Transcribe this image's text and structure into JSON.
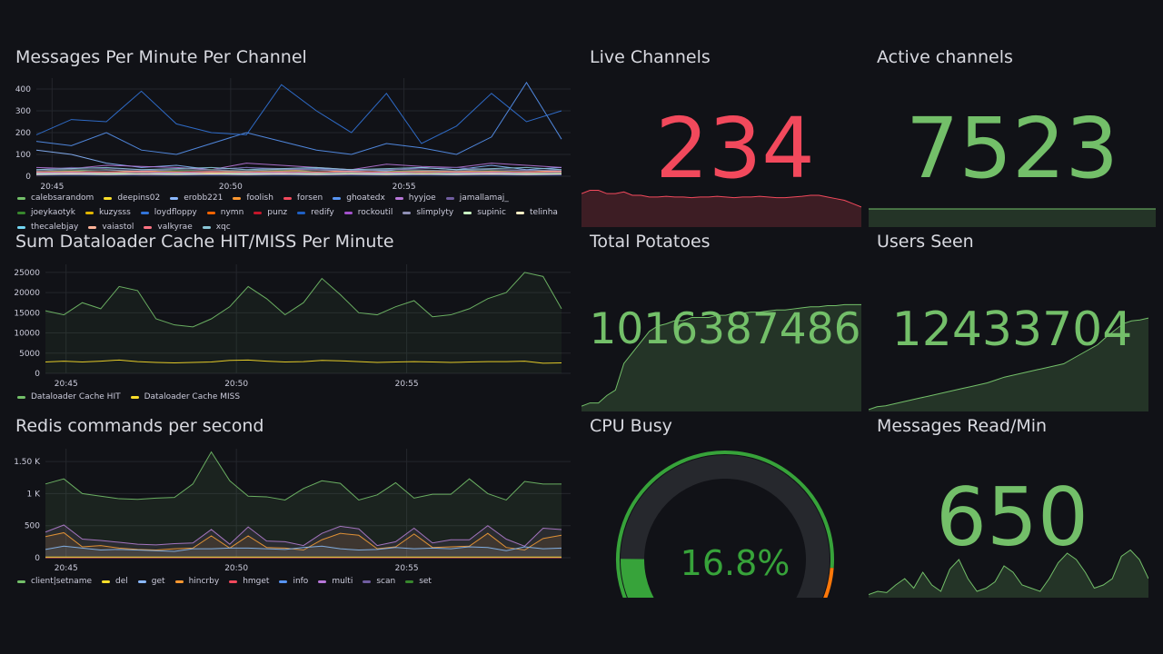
{
  "panels": {
    "messages": {
      "title": "Messages Per Minute Per Channel"
    },
    "dataloader": {
      "title": "Sum Dataloader Cache HIT/MISS Per Minute"
    },
    "redis": {
      "title": "Redis commands per second"
    },
    "live": {
      "title": "Live Channels",
      "value": "234",
      "color": "#f2495c"
    },
    "active": {
      "title": "Active channels",
      "value": "7523",
      "color": "#73bf69"
    },
    "potatoes": {
      "title": "Total Potatoes",
      "value": "1016387486",
      "color": "#73bf69"
    },
    "users": {
      "title": "Users Seen",
      "value": "12433704",
      "color": "#73bf69"
    },
    "cpu": {
      "title": "CPU Busy",
      "value": "16.8%",
      "percent": 16.8,
      "color": "#37a33a"
    },
    "msgread": {
      "title": "Messages Read/Min",
      "value": "650",
      "color": "#73bf69"
    }
  },
  "chart_data": [
    {
      "type": "line",
      "title": "Messages Per Minute Per Channel",
      "ylim": [
        0,
        450
      ],
      "yticks": [
        "0",
        "100",
        "200",
        "300",
        "400"
      ],
      "ytickvals": [
        0,
        100,
        200,
        300,
        400
      ],
      "xticks": [
        "20:45",
        "20:50",
        "20:55"
      ],
      "xtickpos": [
        0.03,
        0.37,
        0.7
      ],
      "series": [
        {
          "name": "calebsarandom",
          "color": "#73bf69",
          "values": [
            20,
            25,
            30,
            20,
            15,
            20,
            25,
            30,
            20,
            18,
            22,
            25,
            20,
            15,
            20,
            25
          ]
        },
        {
          "name": "deepins02",
          "color": "#fade2a",
          "values": [
            10,
            12,
            15,
            10,
            8,
            10,
            15,
            12,
            10,
            8,
            10,
            12,
            10,
            8,
            12,
            10
          ]
        },
        {
          "name": "erobb221",
          "color": "#8ab8ff",
          "values": [
            120,
            100,
            60,
            40,
            50,
            30,
            40,
            30,
            35,
            30,
            25,
            40,
            30,
            50,
            30,
            40
          ]
        },
        {
          "name": "foolish",
          "color": "#ff9830",
          "values": [
            15,
            20,
            18,
            25,
            20,
            15,
            20,
            25,
            30,
            20,
            18,
            20,
            25,
            22,
            20,
            25
          ]
        },
        {
          "name": "forsen",
          "color": "#f2495c",
          "values": [
            5,
            8,
            10,
            5,
            6,
            8,
            10,
            12,
            8,
            6,
            8,
            10,
            8,
            6,
            8,
            10
          ]
        },
        {
          "name": "ghoatedx",
          "color": "#5794f2",
          "values": [
            160,
            140,
            200,
            120,
            100,
            150,
            200,
            160,
            120,
            100,
            150,
            130,
            100,
            180,
            430,
            170
          ]
        },
        {
          "name": "hyyjoe",
          "color": "#b877d9",
          "values": [
            40,
            35,
            50,
            45,
            40,
            30,
            60,
            50,
            40,
            30,
            55,
            45,
            40,
            60,
            50,
            40
          ]
        },
        {
          "name": "jamallamaj_",
          "color": "#705da0",
          "values": [
            30,
            40,
            35,
            30,
            25,
            30,
            40,
            35,
            30,
            25,
            30,
            35,
            40,
            30,
            25,
            30
          ]
        },
        {
          "name": "joeykaotyk",
          "color": "#37872d",
          "values": [
            20,
            25,
            15,
            20,
            25,
            30,
            20,
            25,
            20,
            15,
            20,
            25,
            20,
            25,
            20,
            15
          ]
        },
        {
          "name": "kuzysss",
          "color": "#e0b400",
          "values": [
            10,
            15,
            12,
            10,
            8,
            12,
            15,
            10,
            12,
            8,
            10,
            12,
            10,
            8,
            12,
            10
          ]
        },
        {
          "name": "loydfloppy",
          "color": "#3274d9",
          "values": [
            190,
            260,
            250,
            390,
            240,
            200,
            190,
            420,
            300,
            200,
            380,
            150,
            230,
            380,
            250,
            300
          ]
        },
        {
          "name": "nymn",
          "color": "#fa6400",
          "values": [
            8,
            10,
            12,
            8,
            10,
            12,
            8,
            10,
            12,
            8,
            10,
            12,
            8,
            10,
            12,
            8
          ]
        },
        {
          "name": "punz",
          "color": "#c4162a",
          "values": [
            5,
            6,
            5,
            6,
            5,
            6,
            5,
            6,
            5,
            6,
            5,
            6,
            5,
            6,
            5,
            6
          ]
        },
        {
          "name": "redify",
          "color": "#1f60c4",
          "values": [
            5,
            5,
            5,
            5,
            5,
            5,
            5,
            5,
            5,
            5,
            5,
            5,
            5,
            5,
            5,
            5
          ]
        },
        {
          "name": "rockoutil",
          "color": "#a352cc",
          "values": [
            12,
            15,
            10,
            12,
            15,
            10,
            12,
            15,
            10,
            12,
            15,
            10,
            12,
            15,
            10,
            12
          ]
        },
        {
          "name": "slimplyty",
          "color": "#8f8fb5",
          "values": [
            25,
            30,
            28,
            25,
            30,
            28,
            25,
            30,
            28,
            25,
            30,
            28,
            25,
            30,
            28,
            25
          ]
        },
        {
          "name": "supinic",
          "color": "#c8f2c2",
          "values": [
            10,
            12,
            10,
            12,
            10,
            12,
            10,
            12,
            10,
            12,
            10,
            12,
            10,
            12,
            10,
            12
          ]
        },
        {
          "name": "telinha",
          "color": "#ffeec5",
          "values": [
            8,
            10,
            8,
            10,
            8,
            10,
            8,
            10,
            8,
            10,
            8,
            10,
            8,
            10,
            8,
            10
          ]
        },
        {
          "name": "thecalebjay",
          "color": "#73d6f2",
          "values": [
            15,
            18,
            15,
            18,
            15,
            18,
            15,
            18,
            15,
            18,
            15,
            18,
            15,
            18,
            15,
            18
          ]
        },
        {
          "name": "vaiastol",
          "color": "#ffb399",
          "values": [
            20,
            22,
            20,
            22,
            20,
            22,
            20,
            22,
            20,
            22,
            20,
            22,
            20,
            22,
            20,
            22
          ]
        },
        {
          "name": "valkyrae",
          "color": "#ff7383",
          "values": [
            18,
            20,
            18,
            20,
            18,
            20,
            18,
            20,
            18,
            20,
            18,
            20,
            18,
            20,
            18,
            20
          ]
        },
        {
          "name": "xqc",
          "color": "#8ac5d6",
          "values": [
            30,
            35,
            40,
            30,
            35,
            40,
            30,
            35,
            40,
            30,
            35,
            40,
            30,
            35,
            40,
            30
          ]
        }
      ]
    },
    {
      "type": "line",
      "title": "Sum Dataloader Cache HIT/MISS Per Minute",
      "ylim": [
        0,
        27000
      ],
      "yticks": [
        "0",
        "5000",
        "10000",
        "15000",
        "20000",
        "25000"
      ],
      "ytickvals": [
        0,
        5000,
        10000,
        15000,
        20000,
        25000
      ],
      "xticks": [
        "20:45",
        "20:50",
        "20:55"
      ],
      "xtickpos": [
        0.04,
        0.37,
        0.7
      ],
      "series": [
        {
          "name": "Dataloader Cache HIT",
          "color": "#73bf69",
          "fill": true,
          "values": [
            15500,
            14500,
            17500,
            16000,
            21500,
            20500,
            13500,
            12000,
            11500,
            13500,
            16500,
            21500,
            18500,
            14500,
            17500,
            23500,
            19500,
            15000,
            14500,
            16500,
            18000,
            14000,
            14500,
            16000,
            18500,
            20000,
            25000,
            24000,
            16000
          ]
        },
        {
          "name": "Dataloader Cache MISS",
          "color": "#fade2a",
          "fill": false,
          "values": [
            2800,
            3000,
            2800,
            3000,
            3300,
            2900,
            2700,
            2600,
            2700,
            2800,
            3200,
            3300,
            3000,
            2800,
            2900,
            3200,
            3100,
            2900,
            2700,
            2800,
            2900,
            2800,
            2700,
            2800,
            2900,
            2900,
            3000,
            2500,
            2600
          ]
        }
      ]
    },
    {
      "type": "area",
      "title": "Redis commands per second",
      "ylim": [
        0,
        1700
      ],
      "yticks": [
        "0",
        "500",
        "1 K",
        "1.50 K"
      ],
      "ytickvals": [
        0,
        500,
        1000,
        1500
      ],
      "xticks": [
        "20:45",
        "20:50",
        "20:55"
      ],
      "xtickpos": [
        0.04,
        0.37,
        0.7
      ],
      "series": [
        {
          "name": "client|setname",
          "color": "#73bf69",
          "values": [
            1150,
            1230,
            1000,
            960,
            920,
            910,
            930,
            940,
            1150,
            1650,
            1200,
            960,
            950,
            900,
            1080,
            1200,
            1160,
            900,
            980,
            1170,
            930,
            990,
            990,
            1230,
            1000,
            900,
            1190,
            1150,
            1150
          ]
        },
        {
          "name": "del",
          "color": "#fade2a",
          "values": [
            10,
            10,
            10,
            10,
            10,
            10,
            10,
            10,
            10,
            10,
            10,
            10,
            10,
            10,
            10,
            10,
            10,
            10,
            10,
            10,
            10,
            10,
            10,
            10,
            10,
            10,
            10,
            10,
            10
          ]
        },
        {
          "name": "get",
          "color": "#8ab8ff",
          "values": [
            130,
            180,
            150,
            120,
            130,
            120,
            110,
            100,
            140,
            140,
            150,
            150,
            140,
            130,
            160,
            180,
            140,
            120,
            130,
            160,
            140,
            150,
            140,
            170,
            160,
            110,
            170,
            140,
            150
          ]
        },
        {
          "name": "hincrby",
          "color": "#ff9830",
          "values": [
            330,
            390,
            170,
            190,
            150,
            130,
            120,
            140,
            150,
            340,
            150,
            340,
            160,
            150,
            120,
            280,
            380,
            350,
            140,
            170,
            370,
            160,
            170,
            180,
            380,
            160,
            120,
            300,
            350
          ]
        },
        {
          "name": "hmget",
          "color": "#f2495c",
          "values": [
            0,
            0,
            0,
            0,
            0,
            0,
            0,
            0,
            0,
            0,
            0,
            0,
            0,
            0,
            0,
            0,
            0,
            0,
            0,
            0,
            0,
            0,
            0,
            0,
            0,
            0,
            0,
            0,
            0
          ]
        },
        {
          "name": "info",
          "color": "#5794f2",
          "values": [
            0,
            0,
            0,
            0,
            0,
            0,
            0,
            0,
            0,
            0,
            0,
            0,
            0,
            0,
            0,
            0,
            0,
            0,
            0,
            0,
            0,
            0,
            0,
            0,
            0,
            0,
            0,
            0,
            0
          ]
        },
        {
          "name": "multi",
          "color": "#b877d9",
          "values": [
            400,
            510,
            290,
            270,
            240,
            210,
            200,
            220,
            230,
            440,
            210,
            480,
            260,
            250,
            190,
            380,
            490,
            450,
            190,
            250,
            460,
            230,
            280,
            280,
            500,
            290,
            180,
            460,
            440
          ]
        },
        {
          "name": "scan",
          "color": "#705da0",
          "values": [
            0,
            0,
            0,
            0,
            0,
            0,
            0,
            0,
            0,
            0,
            0,
            0,
            0,
            0,
            0,
            0,
            0,
            0,
            0,
            0,
            0,
            0,
            0,
            0,
            0,
            0,
            0,
            0,
            0
          ]
        },
        {
          "name": "set",
          "color": "#37872d",
          "values": [
            0,
            0,
            0,
            0,
            0,
            0,
            0,
            0,
            0,
            0,
            0,
            0,
            0,
            0,
            0,
            0,
            0,
            0,
            0,
            0,
            0,
            0,
            0,
            0,
            0,
            0,
            0,
            0,
            0
          ]
        }
      ]
    }
  ],
  "sparks": {
    "live": [
      100,
      110,
      110,
      100,
      100,
      105,
      95,
      95,
      90,
      90,
      92,
      90,
      90,
      88,
      90,
      90,
      92,
      90,
      88,
      90,
      90,
      92,
      90,
      88,
      88,
      90,
      92,
      95,
      95,
      90,
      85,
      80,
      70,
      60
    ],
    "active": [
      100,
      100,
      100,
      100,
      100,
      100,
      100,
      100,
      100,
      100
    ],
    "potatoes": [
      5,
      8,
      8,
      15,
      20,
      45,
      55,
      65,
      75,
      80,
      82,
      85,
      85,
      88,
      88,
      88,
      90,
      90,
      92,
      92,
      93,
      93,
      94,
      95,
      95,
      96,
      97,
      98,
      98,
      99,
      99,
      100,
      100,
      100
    ],
    "users": [
      2,
      5,
      6,
      8,
      10,
      12,
      14,
      16,
      18,
      20,
      22,
      24,
      26,
      28,
      30,
      33,
      36,
      38,
      40,
      42,
      44,
      46,
      48,
      50,
      55,
      60,
      65,
      70,
      78,
      85,
      92,
      95,
      96,
      98
    ],
    "msgread": [
      5,
      10,
      8,
      20,
      30,
      15,
      40,
      20,
      10,
      45,
      60,
      30,
      10,
      15,
      25,
      50,
      40,
      20,
      15,
      10,
      30,
      55,
      70,
      60,
      40,
      15,
      20,
      30,
      65,
      75,
      60,
      30
    ]
  }
}
